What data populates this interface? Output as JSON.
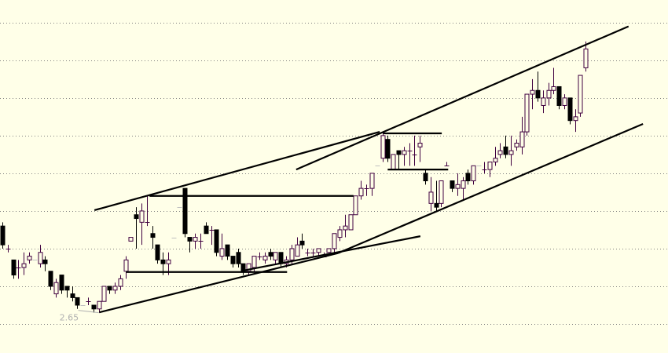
{
  "chart_data": {
    "type": "candlestick",
    "title": "",
    "xlabel": "",
    "ylabel": "",
    "ylim": [
      2.543,
      3.48
    ],
    "grid": {
      "on": true,
      "style": "dotted",
      "horizontal_levels": [
        2.62,
        2.72,
        2.82,
        2.92,
        3.02,
        3.12,
        3.22,
        3.32,
        3.42
      ]
    },
    "colors": {
      "background": "#ffffe8",
      "up_candle_outline": "#400040",
      "down_candle_fill": "#000000",
      "flat_candle": "#c0c0c0",
      "trendline": "#000000",
      "grid": "#808080",
      "low_label": "#b0b0b0"
    },
    "candle_fields": [
      "open",
      "high",
      "low",
      "close"
    ],
    "candles": [
      [
        2.88,
        2.89,
        2.82,
        2.83
      ],
      [
        2.82,
        2.83,
        2.81,
        2.82
      ],
      [
        2.79,
        2.79,
        2.74,
        2.75
      ],
      [
        2.77,
        2.79,
        2.74,
        2.77
      ],
      [
        2.77,
        2.81,
        2.75,
        2.78
      ],
      [
        2.79,
        2.81,
        2.78,
        2.8
      ],
      [
        2.79,
        2.79,
        2.79,
        2.79
      ],
      [
        2.78,
        2.83,
        2.77,
        2.81
      ],
      [
        2.79,
        2.8,
        2.76,
        2.78
      ],
      [
        2.76,
        2.76,
        2.71,
        2.72
      ],
      [
        2.7,
        2.74,
        2.69,
        2.73
      ],
      [
        2.75,
        2.75,
        2.7,
        2.71
      ],
      [
        2.72,
        2.72,
        2.69,
        2.71
      ],
      [
        2.7,
        2.72,
        2.68,
        2.69
      ],
      [
        2.69,
        2.69,
        2.66,
        2.67
      ],
      [
        2.67,
        2.67,
        2.67,
        2.67
      ],
      [
        2.68,
        2.69,
        2.67,
        2.68
      ],
      [
        2.67,
        2.67,
        2.65,
        2.66
      ],
      [
        2.66,
        2.68,
        2.65,
        2.68
      ],
      [
        2.68,
        2.72,
        2.68,
        2.72
      ],
      [
        2.72,
        2.72,
        2.7,
        2.71
      ],
      [
        2.71,
        2.73,
        2.7,
        2.72
      ],
      [
        2.72,
        2.75,
        2.71,
        2.74
      ],
      [
        2.76,
        2.8,
        2.74,
        2.79
      ],
      [
        2.84,
        2.85,
        2.84,
        2.85
      ],
      [
        2.91,
        2.93,
        2.82,
        2.9
      ],
      [
        2.89,
        2.94,
        2.83,
        2.92
      ],
      [
        2.89,
        2.96,
        2.88,
        2.89
      ],
      [
        2.86,
        2.88,
        2.82,
        2.85
      ],
      [
        2.83,
        2.83,
        2.78,
        2.79
      ],
      [
        2.79,
        2.81,
        2.75,
        2.78
      ],
      [
        2.78,
        2.81,
        2.75,
        2.79
      ],
      [
        2.85,
        2.85,
        2.85,
        2.85
      ],
      [
        2.93,
        2.93,
        2.93,
        2.93
      ],
      [
        2.98,
        2.98,
        2.85,
        2.86
      ],
      [
        2.85,
        2.85,
        2.81,
        2.84
      ],
      [
        2.84,
        2.86,
        2.82,
        2.85
      ],
      [
        2.84,
        2.86,
        2.82,
        2.84
      ],
      [
        2.88,
        2.89,
        2.86,
        2.86
      ],
      [
        2.87,
        2.88,
        2.83,
        2.87
      ],
      [
        2.87,
        2.87,
        2.8,
        2.81
      ],
      [
        2.8,
        2.86,
        2.79,
        2.82
      ],
      [
        2.83,
        2.83,
        2.79,
        2.8
      ],
      [
        2.8,
        2.8,
        2.77,
        2.78
      ],
      [
        2.81,
        2.82,
        2.77,
        2.78
      ],
      [
        2.78,
        2.78,
        2.75,
        2.76
      ],
      [
        2.76,
        2.78,
        2.75,
        2.78
      ],
      [
        2.77,
        2.8,
        2.76,
        2.8
      ],
      [
        2.8,
        2.81,
        2.79,
        2.8
      ],
      [
        2.79,
        2.81,
        2.78,
        2.8
      ],
      [
        2.81,
        2.82,
        2.79,
        2.8
      ],
      [
        2.79,
        2.81,
        2.78,
        2.81
      ],
      [
        2.81,
        2.81,
        2.77,
        2.78
      ],
      [
        2.78,
        2.8,
        2.77,
        2.79
      ],
      [
        2.79,
        2.83,
        2.78,
        2.82
      ],
      [
        2.8,
        2.85,
        2.8,
        2.83
      ],
      [
        2.84,
        2.86,
        2.82,
        2.83
      ],
      [
        2.81,
        2.82,
        2.8,
        2.81
      ],
      [
        2.81,
        2.82,
        2.8,
        2.81
      ],
      [
        2.81,
        2.82,
        2.8,
        2.82
      ],
      [
        2.8,
        2.81,
        2.8,
        2.8
      ],
      [
        2.81,
        2.82,
        2.81,
        2.82
      ],
      [
        2.82,
        2.86,
        2.81,
        2.86
      ],
      [
        2.85,
        2.88,
        2.84,
        2.87
      ],
      [
        2.87,
        2.91,
        2.85,
        2.88
      ],
      [
        2.87,
        2.91,
        2.87,
        2.91
      ],
      [
        2.91,
        2.96,
        2.91,
        2.96
      ],
      [
        2.96,
        3.0,
        2.95,
        2.98
      ],
      [
        2.98,
        2.99,
        2.96,
        2.98
      ],
      [
        2.98,
        3.02,
        2.96,
        3.02
      ],
      [
        3.04,
        3.04,
        3.04,
        3.04
      ],
      [
        3.06,
        3.13,
        3.05,
        3.12
      ],
      [
        3.11,
        3.12,
        3.05,
        3.06
      ],
      [
        3.03,
        3.07,
        3.03,
        3.07
      ],
      [
        3.08,
        3.08,
        3.03,
        3.07
      ],
      [
        3.07,
        3.09,
        3.04,
        3.08
      ],
      [
        3.08,
        3.1,
        3.04,
        3.08
      ],
      [
        3.07,
        3.12,
        3.04,
        3.07
      ],
      [
        3.09,
        3.12,
        3.05,
        3.1
      ],
      [
        3.02,
        3.03,
        2.99,
        3.0
      ],
      [
        2.94,
        3.01,
        2.92,
        2.97
      ],
      [
        2.94,
        3.0,
        2.92,
        2.93
      ],
      [
        2.94,
        3.0,
        2.93,
        3.0
      ],
      [
        3.04,
        3.05,
        3.04,
        3.04
      ],
      [
        3.0,
        3.0,
        2.97,
        2.98
      ],
      [
        2.98,
        3.02,
        2.96,
        2.99
      ],
      [
        2.98,
        3.01,
        2.95,
        3.0
      ],
      [
        3.02,
        3.03,
        2.99,
        3.0
      ],
      [
        3.0,
        3.04,
        2.99,
        3.04
      ],
      [
        3.04,
        3.04,
        3.04,
        3.04
      ],
      [
        3.03,
        3.05,
        3.02,
        3.03
      ],
      [
        3.03,
        3.05,
        3.01,
        3.05
      ],
      [
        3.05,
        3.09,
        3.04,
        3.06
      ],
      [
        3.07,
        3.1,
        3.06,
        3.08
      ],
      [
        3.09,
        3.12,
        3.06,
        3.07
      ],
      [
        3.07,
        3.12,
        3.04,
        3.08
      ],
      [
        3.09,
        3.11,
        3.08,
        3.1
      ],
      [
        3.09,
        3.17,
        3.07,
        3.13
      ],
      [
        3.13,
        3.23,
        3.12,
        3.23
      ],
      [
        3.23,
        3.27,
        3.19,
        3.24
      ],
      [
        3.24,
        3.29,
        3.21,
        3.22
      ],
      [
        3.2,
        3.24,
        3.18,
        3.22
      ],
      [
        3.22,
        3.26,
        3.2,
        3.24
      ],
      [
        3.24,
        3.3,
        3.23,
        3.25
      ],
      [
        3.25,
        3.25,
        3.19,
        3.2
      ],
      [
        3.2,
        3.23,
        3.19,
        3.22
      ],
      [
        3.22,
        3.22,
        3.15,
        3.16
      ],
      [
        3.16,
        3.19,
        3.13,
        3.17
      ],
      [
        3.18,
        3.28,
        3.17,
        3.28
      ],
      [
        3.3,
        3.37,
        3.29,
        3.35
      ]
    ],
    "trendlines": [
      {
        "from": [
          17.2,
          2.922
        ],
        "to": [
          70.5,
          3.13
        ]
      },
      {
        "from": [
          54.9,
          3.03
        ],
        "to": [
          117.0,
          3.41
        ]
      },
      {
        "from": [
          18.1,
          2.651
        ],
        "to": [
          62.7,
          2.808
        ]
      },
      {
        "from": [
          62.7,
          2.808
        ],
        "to": [
          119.7,
          3.151
        ]
      },
      {
        "from": [
          45.1,
          2.762
        ],
        "to": [
          78.1,
          2.853
        ]
      },
      {
        "from": [
          27.5,
          2.96
        ],
        "to": [
          65.6,
          2.96
        ]
      },
      {
        "from": [
          23.1,
          2.758
        ],
        "to": [
          53.2,
          2.758
        ]
      },
      {
        "from": [
          72.0,
          3.03
        ],
        "to": [
          83.3,
          3.03
        ]
      },
      {
        "from": [
          71.2,
          3.126
        ],
        "to": [
          82.1,
          3.126
        ]
      }
    ],
    "annotations": {
      "low_label": "2.65",
      "low_candle_index": 18
    }
  }
}
